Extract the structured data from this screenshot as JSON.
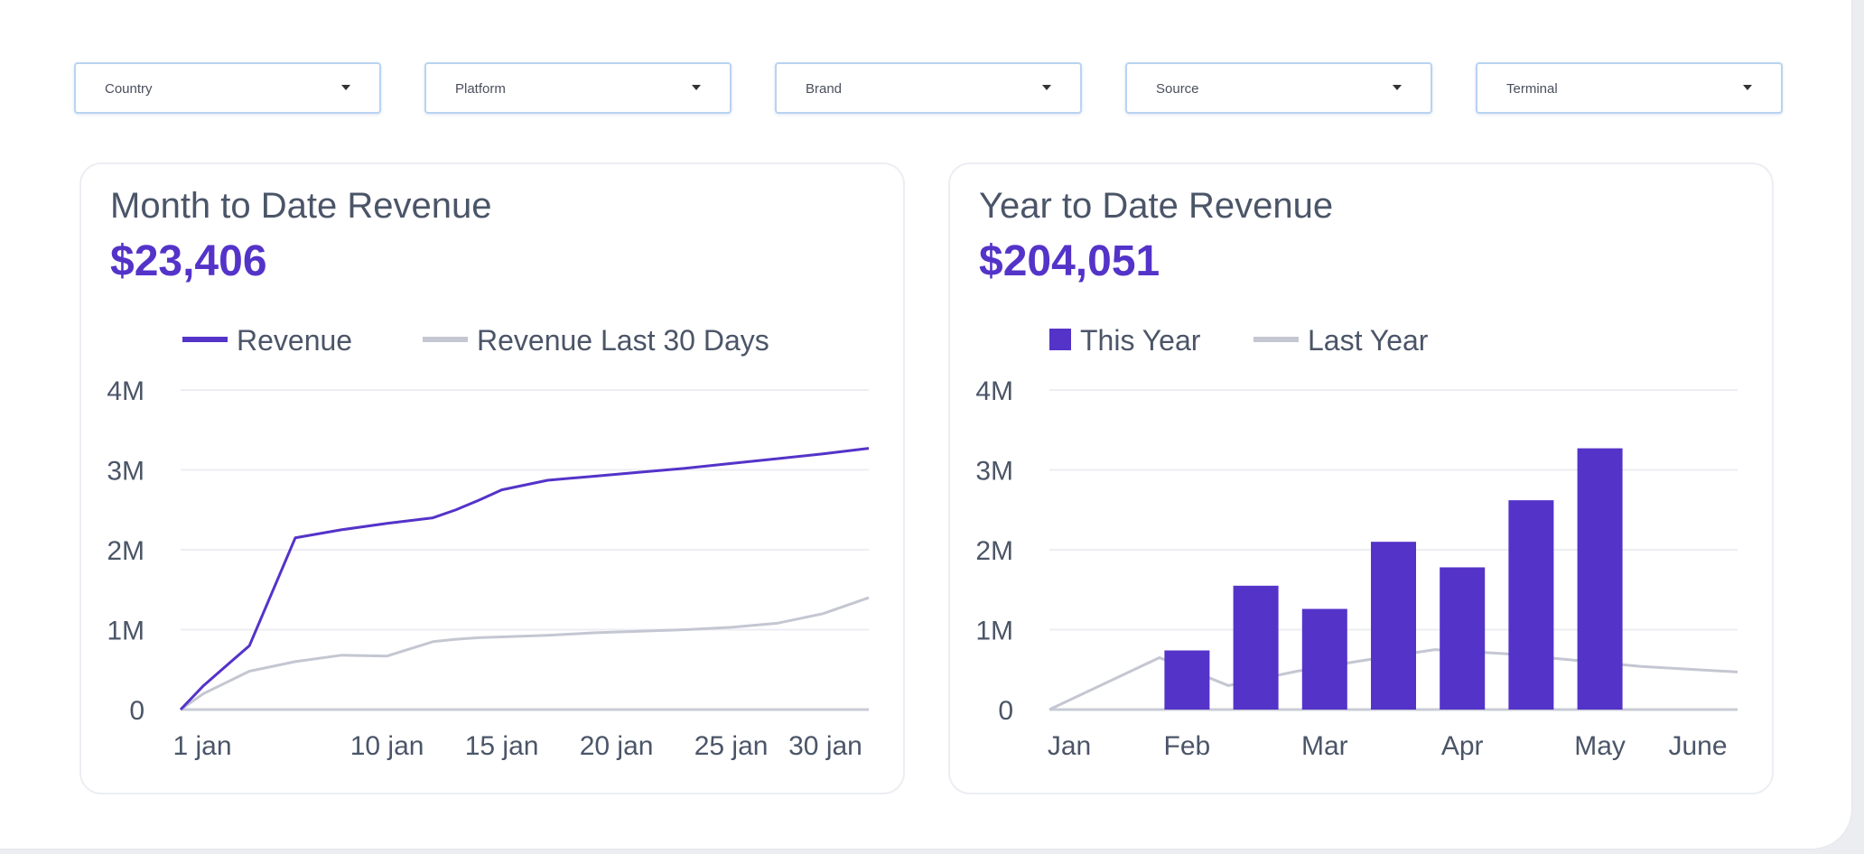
{
  "filters": [
    {
      "label": "Country"
    },
    {
      "label": "Platform"
    },
    {
      "label": "Brand"
    },
    {
      "label": "Source"
    },
    {
      "label": "Terminal"
    }
  ],
  "colors": {
    "primary": "#5433c9",
    "secondary": "#c4c7d2",
    "grid": "#eceef3",
    "text": "#4b5568"
  },
  "cards": [
    {
      "title": "Month to Date Revenue",
      "value": "$23,406",
      "chart_data": {
        "type": "line",
        "x": [
          1,
          2,
          4,
          6,
          8,
          10,
          12,
          13,
          14,
          15,
          17,
          19,
          21,
          23,
          25,
          27,
          29,
          31
        ],
        "x_ticks": [
          {
            "value": 1,
            "label": "1 jan"
          },
          {
            "value": 10,
            "label": "10 jan"
          },
          {
            "value": 15,
            "label": "15 jan"
          },
          {
            "value": 20,
            "label": "20 jan"
          },
          {
            "value": 25,
            "label": "25 jan"
          },
          {
            "value": 30,
            "label": "30 jan"
          }
        ],
        "xlim": [
          1,
          31
        ],
        "ylim": [
          0,
          4000000
        ],
        "y_ticks": [
          {
            "value": 0,
            "label": "0"
          },
          {
            "value": 1000000,
            "label": "1M"
          },
          {
            "value": 2000000,
            "label": "2M"
          },
          {
            "value": 3000000,
            "label": "3M"
          },
          {
            "value": 4000000,
            "label": "4M"
          }
        ],
        "grid": true,
        "legend_position": "top-left",
        "series": [
          {
            "name": "Revenue",
            "style": "line",
            "color": "#5433c9",
            "values": [
              0,
              300000,
              800000,
              2150000,
              2250000,
              2330000,
              2400000,
              2500000,
              2620000,
              2750000,
              2870000,
              2920000,
              2970000,
              3020000,
              3080000,
              3140000,
              3200000,
              3270000
            ]
          },
          {
            "name": "Revenue Last 30 Days",
            "style": "line",
            "color": "#c4c7d2",
            "values": [
              0,
              200000,
              480000,
              600000,
              680000,
              670000,
              850000,
              880000,
              900000,
              910000,
              930000,
              960000,
              980000,
              1000000,
              1030000,
              1080000,
              1200000,
              1400000
            ]
          }
        ]
      }
    },
    {
      "title": "Year to Date Revenue",
      "value": "$204,051",
      "chart_data": {
        "type": "bar",
        "categories": [
          "Jan",
          "Feb",
          "Mar",
          "Apr",
          "May",
          "June"
        ],
        "ylim": [
          0,
          4000000
        ],
        "y_ticks": [
          {
            "value": 0,
            "label": "0"
          },
          {
            "value": 1000000,
            "label": "1M"
          },
          {
            "value": 2000000,
            "label": "2M"
          },
          {
            "value": 3000000,
            "label": "3M"
          },
          {
            "value": 4000000,
            "label": "4M"
          }
        ],
        "grid": true,
        "legend_position": "top-left",
        "bars": {
          "name": "This Year",
          "color": "#5433c9",
          "x": [
            2.0,
            2.5,
            3.0,
            3.5,
            4.0,
            4.5,
            5.0
          ],
          "values": [
            740000,
            1550000,
            1260000,
            2100000,
            1780000,
            2620000,
            3270000
          ]
        },
        "line": {
          "name": "Last Year",
          "color": "#c4c7d2",
          "x": [
            1.0,
            1.8,
            2.3,
            2.8,
            3.3,
            3.8,
            4.3,
            4.8,
            5.3,
            6.0
          ],
          "values": [
            0,
            650000,
            300000,
            480000,
            620000,
            750000,
            700000,
            620000,
            540000,
            470000
          ]
        }
      }
    }
  ]
}
